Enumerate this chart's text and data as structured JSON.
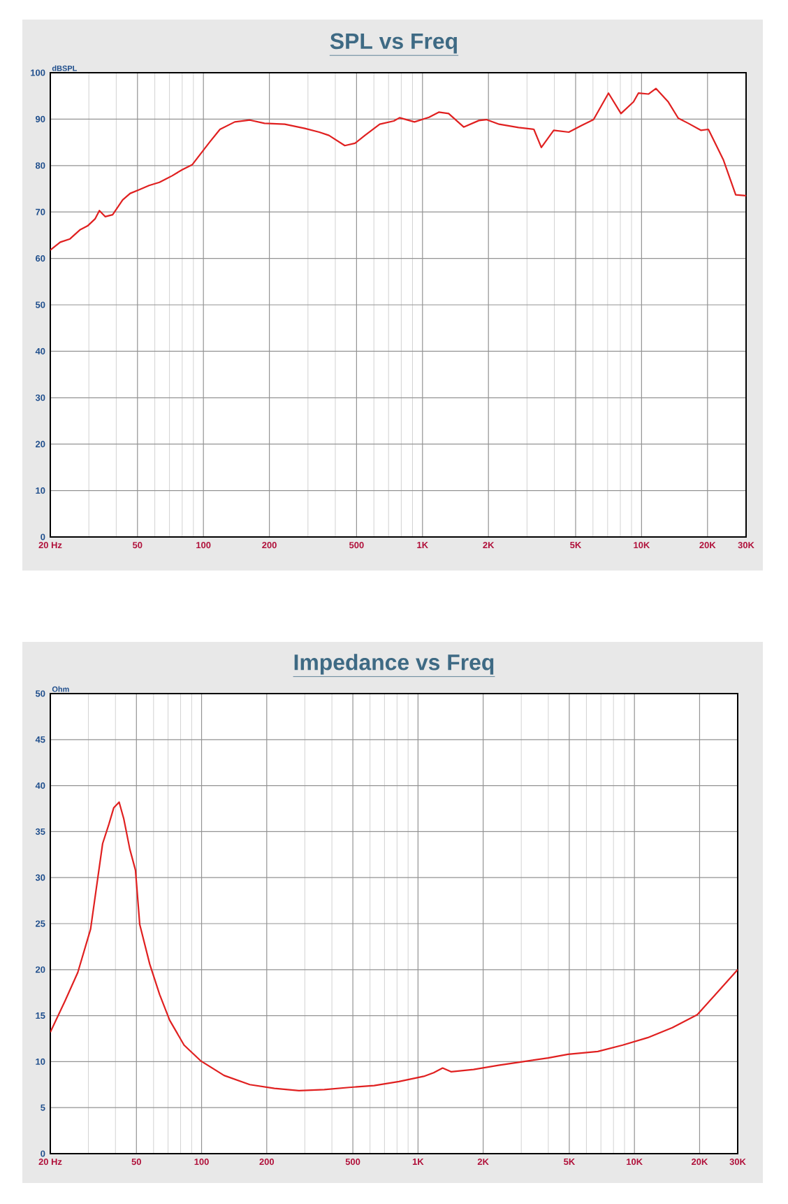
{
  "chart_data": [
    {
      "type": "line",
      "title": "SPL vs Freq",
      "ylabel": "dBSPL",
      "log": "x",
      "grid": true,
      "xlim": [
        20,
        30000
      ],
      "ylim": [
        0,
        100
      ],
      "xticks": [
        {
          "value": 20,
          "label": "20 Hz"
        },
        50,
        100,
        200,
        500,
        {
          "value": 1000,
          "label": "1K"
        },
        {
          "value": 2000,
          "label": "2K"
        },
        {
          "value": 5000,
          "label": "5K"
        },
        {
          "value": 10000,
          "label": "10K"
        },
        {
          "value": 20000,
          "label": "20K"
        },
        {
          "value": 30000,
          "label": "30K"
        }
      ],
      "yticks": [
        0,
        10,
        20,
        30,
        40,
        50,
        60,
        70,
        80,
        90,
        100
      ],
      "x": [
        20,
        22.2,
        24.6,
        27.4,
        29.6,
        32,
        33.5,
        35.6,
        38.5,
        42.8,
        46.3,
        51,
        56.5,
        63,
        72,
        80,
        89,
        96.6,
        107,
        119,
        139,
        163,
        190,
        235,
        290,
        338,
        374,
        442,
        492,
        546,
        638,
        740,
        786,
        919,
        1071,
        1187,
        1316,
        1542,
        1808,
        1957,
        2239,
        2744,
        3224,
        3487,
        3972,
        4654,
        5300,
        6036,
        7064,
        8053,
        9183,
        9674,
        10750,
        11628,
        13243,
        14700,
        16340,
        18640,
        20180,
        23600,
        26900,
        30000
      ],
      "series": [
        {
          "color": "#e02020",
          "values": [
            61.8,
            63.5,
            64.2,
            66.2,
            67,
            68.5,
            70.3,
            69.0,
            69.4,
            72.6,
            74,
            74.8,
            75.7,
            76.4,
            77.8,
            79.1,
            80.2,
            82.4,
            85.1,
            87.8,
            89.4,
            89.8,
            89.1,
            88.9,
            88,
            87.2,
            86.5,
            84.3,
            84.8,
            86.5,
            88.9,
            89.6,
            90.3,
            89.4,
            90.4,
            91.5,
            91.2,
            88.3,
            89.7,
            89.9,
            88.9,
            88.2,
            87.8,
            83.9,
            87.6,
            87.2,
            88.6,
            89.9,
            95.6,
            91.2,
            93.7,
            95.6,
            95.4,
            96.6,
            93.7,
            90.2,
            89.1,
            87.6,
            87.8,
            81.3,
            73.7,
            73.5
          ]
        }
      ]
    },
    {
      "type": "line",
      "title": "Impedance vs Freq",
      "ylabel": "Ohm",
      "log": "x",
      "grid": true,
      "xlim": [
        20,
        30000
      ],
      "ylim": [
        0,
        50
      ],
      "xticks": [
        {
          "value": 20,
          "label": "20 Hz"
        },
        50,
        100,
        200,
        500,
        {
          "value": 1000,
          "label": "1K"
        },
        {
          "value": 2000,
          "label": "2K"
        },
        {
          "value": 5000,
          "label": "5K"
        },
        {
          "value": 10000,
          "label": "10K"
        },
        {
          "value": 20000,
          "label": "20K"
        },
        {
          "value": 30000,
          "label": "30K"
        }
      ],
      "yticks": [
        0,
        5,
        10,
        15,
        20,
        25,
        30,
        35,
        40,
        45,
        50
      ],
      "x": [
        20,
        23.4,
        26.8,
        30.7,
        34.9,
        37.3,
        39.3,
        41.6,
        43.7,
        46.6,
        49.5,
        51.8,
        57.6,
        64,
        71.2,
        83,
        98.9,
        127,
        167,
        217,
        282,
        369,
        481,
        627,
        816,
        1063,
        1181,
        1299,
        1421,
        1805,
        2352,
        3064,
        3992,
        4933,
        6771,
        8823,
        11495,
        14977,
        19514,
        24088,
        30000
      ],
      "series": [
        {
          "color": "#e02020",
          "values": [
            13.2,
            16.6,
            19.7,
            24.4,
            33.7,
            35.8,
            37.6,
            38.2,
            36.4,
            33.1,
            30.8,
            24.9,
            20.6,
            17.3,
            14.5,
            11.8,
            10.1,
            8.5,
            7.5,
            7.1,
            6.85,
            6.96,
            7.2,
            7.4,
            7.84,
            8.4,
            8.8,
            9.3,
            8.9,
            9.15,
            9.6,
            10.0,
            10.4,
            10.8,
            11.1,
            11.8,
            12.6,
            13.7,
            15.1,
            17.5,
            20.0
          ]
        }
      ]
    }
  ]
}
